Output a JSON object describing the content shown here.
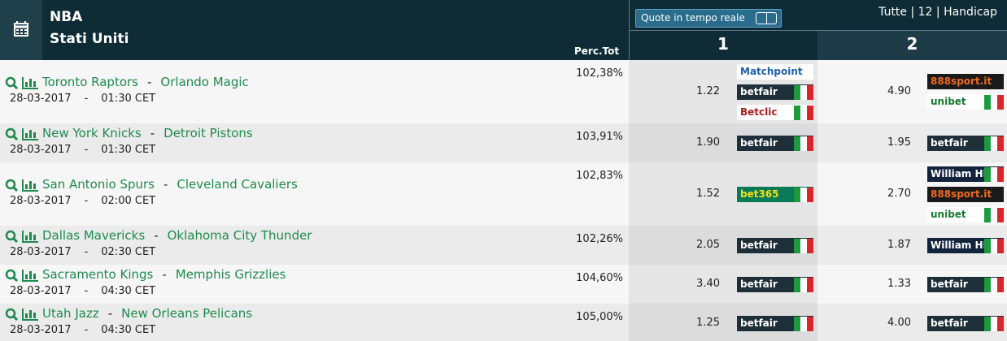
{
  "header": {
    "title": "NBA",
    "subtitle": "Stati Uniti",
    "perc_label": "Perc.Tot",
    "toggle_label": "Quote in tempo reale",
    "filters": "Tutte | 12 | Handicap",
    "col1": "1",
    "col2": "2",
    "separator": "-"
  },
  "matches": [
    {
      "home": "Toronto Raptors",
      "away": "Orlando Magic",
      "date": "28-03-2017",
      "time": "01:30 CET",
      "perc": "102,38%",
      "odds1": "1.22",
      "books1": [
        {
          "name": "Matchpoint",
          "bg": "#ffffff",
          "fg": "#1d5fae",
          "flag": false
        },
        {
          "name": "betfair",
          "bg": "#1f2f3a",
          "fg": "#ffffff",
          "flag": true
        },
        {
          "name": "Betclic",
          "bg": "#ffffff",
          "fg": "#b01c1c",
          "flag": true
        }
      ],
      "odds2": "4.90",
      "books2": [
        {
          "name": "888sport.it",
          "bg": "#1a1a1a",
          "fg": "#f26a1b",
          "flag": false
        },
        {
          "name": "unibet",
          "bg": "#ffffff",
          "fg": "#147b2e",
          "flag": true
        }
      ]
    },
    {
      "home": "New York Knicks",
      "away": "Detroit Pistons",
      "date": "28-03-2017",
      "time": "01:30 CET",
      "perc": "103,91%",
      "odds1": "1.90",
      "books1": [
        {
          "name": "betfair",
          "bg": "#1f2f3a",
          "fg": "#ffffff",
          "flag": true
        }
      ],
      "odds2": "1.95",
      "books2": [
        {
          "name": "betfair",
          "bg": "#1f2f3a",
          "fg": "#ffffff",
          "flag": true
        }
      ]
    },
    {
      "home": "San Antonio Spurs",
      "away": "Cleveland Cavaliers",
      "date": "28-03-2017",
      "time": "02:00 CET",
      "perc": "102,83%",
      "odds1": "1.52",
      "books1": [
        {
          "name": "bet365",
          "bg": "#087a55",
          "fg": "#f7e01c",
          "flag": true
        }
      ],
      "odds2": "2.70",
      "books2": [
        {
          "name": "William HILL",
          "bg": "#14233d",
          "fg": "#ffffff",
          "flag": true
        },
        {
          "name": "888sport.it",
          "bg": "#1a1a1a",
          "fg": "#f26a1b",
          "flag": false
        },
        {
          "name": "unibet",
          "bg": "#ffffff",
          "fg": "#147b2e",
          "flag": true
        }
      ]
    },
    {
      "home": "Dallas Mavericks",
      "away": "Oklahoma City Thunder",
      "date": "28-03-2017",
      "time": "02:30 CET",
      "perc": "102,26%",
      "odds1": "2.05",
      "books1": [
        {
          "name": "betfair",
          "bg": "#1f2f3a",
          "fg": "#ffffff",
          "flag": true
        }
      ],
      "odds2": "1.87",
      "books2": [
        {
          "name": "William HILL",
          "bg": "#14233d",
          "fg": "#ffffff",
          "flag": true
        }
      ]
    },
    {
      "home": "Sacramento Kings",
      "away": "Memphis Grizzlies",
      "date": "28-03-2017",
      "time": "04:30 CET",
      "perc": "104,60%",
      "odds1": "3.40",
      "books1": [
        {
          "name": "betfair",
          "bg": "#1f2f3a",
          "fg": "#ffffff",
          "flag": true
        }
      ],
      "odds2": "1.33",
      "books2": [
        {
          "name": "betfair",
          "bg": "#1f2f3a",
          "fg": "#ffffff",
          "flag": true
        }
      ]
    },
    {
      "home": "Utah Jazz",
      "away": "New Orleans Pelicans",
      "date": "28-03-2017",
      "time": "04:30 CET",
      "perc": "105,00%",
      "odds1": "1.25",
      "books1": [
        {
          "name": "betfair",
          "bg": "#1f2f3a",
          "fg": "#ffffff",
          "flag": true
        }
      ],
      "odds2": "4.00",
      "books2": [
        {
          "name": "betfair",
          "bg": "#1f2f3a",
          "fg": "#ffffff",
          "flag": true
        }
      ]
    }
  ]
}
